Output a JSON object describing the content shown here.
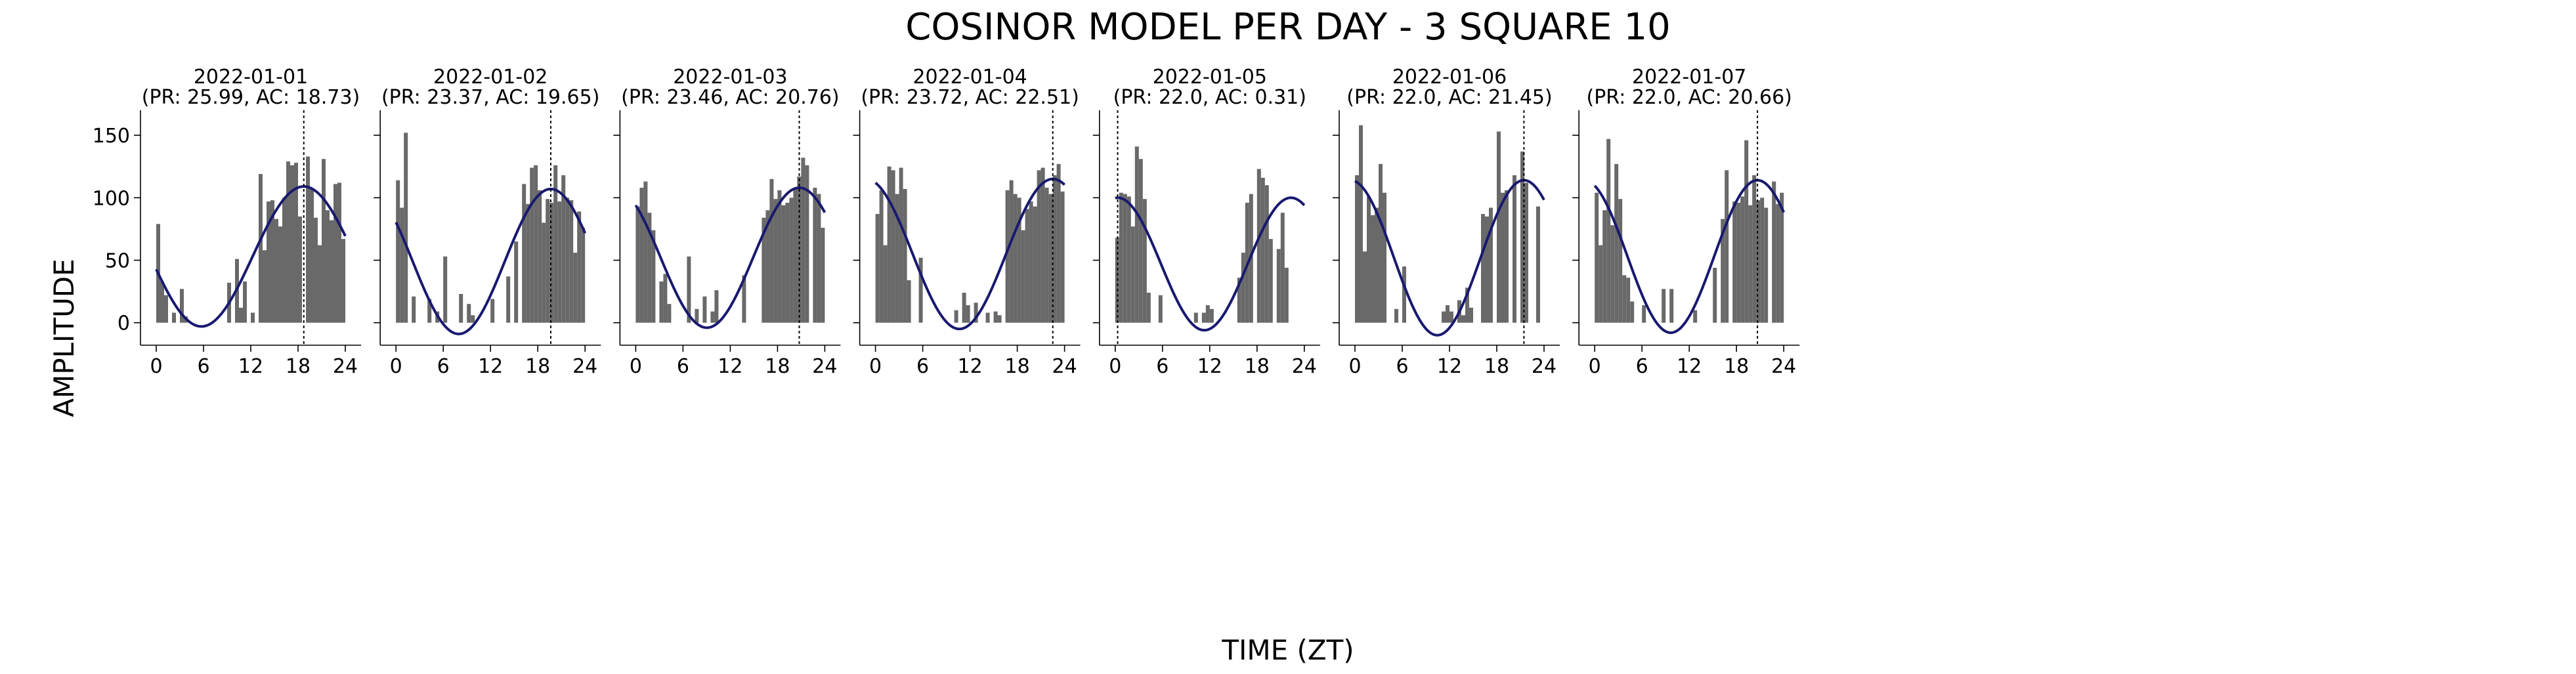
{
  "figure": {
    "title": "COSINOR MODEL PER DAY - 3 SQUARE 10",
    "xlabel": "TIME (ZT)",
    "ylabel": "AMPLITUDE"
  },
  "colors": {
    "bar": "#696969",
    "curve": "#191970",
    "acrophase_line": "#000000",
    "axis": "#000000"
  },
  "chart_data": [
    {
      "type": "bar",
      "title": "2022-01-01\n(PR: 25.99, AC: 18.73)",
      "date": "2022-01-01",
      "subtitle": "(PR: 25.99, AC: 18.73)",
      "xlim": [
        -2,
        26
      ],
      "ylim": [
        -18,
        170
      ],
      "xticks": [
        0,
        6,
        12,
        18,
        24
      ],
      "yticks": [
        0,
        50,
        100,
        150
      ],
      "x": [
        0,
        0.5,
        1,
        1.5,
        2,
        2.5,
        3,
        3.5,
        4,
        4.5,
        5,
        5.5,
        6,
        6.5,
        7,
        7.5,
        8,
        8.5,
        9,
        9.5,
        10,
        10.5,
        11,
        11.5,
        12,
        12.5,
        13,
        13.5,
        14,
        14.5,
        15,
        15.5,
        16,
        16.5,
        17,
        17.5,
        18,
        18.5,
        19,
        19.5,
        20,
        20.5,
        21,
        21.5,
        22,
        22.5,
        23,
        23.5
      ],
      "values": [
        79,
        33,
        22,
        0,
        8,
        0,
        27,
        5,
        0,
        0,
        0,
        0,
        0,
        0,
        0,
        0,
        0,
        0,
        32,
        0,
        51,
        12,
        33,
        0,
        8,
        0,
        119,
        58,
        97,
        98,
        83,
        77,
        100,
        129,
        126,
        128,
        85,
        0,
        133,
        107,
        84,
        62,
        131,
        90,
        82,
        111,
        112,
        67
      ],
      "cosinor": {
        "mesor": 53,
        "amplitude": 56,
        "acrophase": 18.73,
        "period": 25.99
      },
      "acrophase": 18.73
    },
    {
      "type": "bar",
      "title": "2022-01-02\n(PR: 23.37, AC: 19.65)",
      "date": "2022-01-02",
      "subtitle": "(PR: 23.37, AC: 19.65)",
      "xlim": [
        -2,
        26
      ],
      "ylim": [
        -18,
        170
      ],
      "xticks": [
        0,
        6,
        12,
        18,
        24
      ],
      "yticks": [
        0,
        50,
        100,
        150
      ],
      "x": [
        0,
        0.5,
        1,
        1.5,
        2,
        2.5,
        3,
        3.5,
        4,
        4.5,
        5,
        5.5,
        6,
        6.5,
        7,
        7.5,
        8,
        8.5,
        9,
        9.5,
        10,
        10.5,
        11,
        11.5,
        12,
        12.5,
        13,
        13.5,
        14,
        14.5,
        15,
        15.5,
        16,
        16.5,
        17,
        17.5,
        18,
        18.5,
        19,
        19.5,
        20,
        20.5,
        21,
        21.5,
        22,
        22.5,
        23,
        23.5
      ],
      "values": [
        114,
        92,
        152,
        0,
        21,
        0,
        0,
        0,
        19,
        0,
        9,
        0,
        53,
        0,
        0,
        0,
        23,
        0,
        15,
        6,
        0,
        0,
        0,
        0,
        19,
        0,
        0,
        0,
        37,
        0,
        65,
        0,
        111,
        95,
        124,
        126,
        106,
        80,
        99,
        96,
        126,
        97,
        118,
        100,
        98,
        56,
        89,
        76
      ],
      "cosinor": {
        "mesor": 49,
        "amplitude": 58,
        "acrophase": 19.65,
        "period": 23.37
      },
      "acrophase": 19.65
    },
    {
      "type": "bar",
      "title": "2022-01-03\n(PR: 23.46, AC: 20.76)",
      "date": "2022-01-03",
      "subtitle": "(PR: 23.46, AC: 20.76)",
      "xlim": [
        -2,
        26
      ],
      "ylim": [
        -18,
        170
      ],
      "xticks": [
        0,
        6,
        12,
        18,
        24
      ],
      "yticks": [
        0,
        50,
        100,
        150
      ],
      "x": [
        0,
        0.5,
        1,
        1.5,
        2,
        2.5,
        3,
        3.5,
        4,
        4.5,
        5,
        5.5,
        6,
        6.5,
        7,
        7.5,
        8,
        8.5,
        9,
        9.5,
        10,
        10.5,
        11,
        11.5,
        12,
        12.5,
        13,
        13.5,
        14,
        14.5,
        15,
        15.5,
        16,
        16.5,
        17,
        17.5,
        18,
        18.5,
        19,
        19.5,
        20,
        20.5,
        21,
        21.5,
        22,
        22.5,
        23,
        23.5
      ],
      "values": [
        93,
        108,
        113,
        88,
        74,
        0,
        33,
        39,
        15,
        0,
        0,
        0,
        0,
        53,
        0,
        11,
        0,
        21,
        0,
        9,
        26,
        0,
        0,
        0,
        0,
        0,
        0,
        38,
        0,
        0,
        0,
        0,
        84,
        90,
        115,
        99,
        106,
        94,
        96,
        100,
        107,
        117,
        132,
        126,
        0,
        108,
        103,
        76
      ],
      "cosinor": {
        "mesor": 52,
        "amplitude": 56,
        "acrophase": 20.76,
        "period": 23.46
      },
      "acrophase": 20.76
    },
    {
      "type": "bar",
      "title": "2022-01-04\n(PR: 23.72, AC: 22.51)",
      "date": "2022-01-04",
      "subtitle": "(PR: 23.72, AC: 22.51)",
      "xlim": [
        -2,
        26
      ],
      "ylim": [
        -18,
        170
      ],
      "xticks": [
        0,
        6,
        12,
        18,
        24
      ],
      "yticks": [
        0,
        50,
        100,
        150
      ],
      "x": [
        0,
        0.5,
        1,
        1.5,
        2,
        2.5,
        3,
        3.5,
        4,
        4.5,
        5,
        5.5,
        6,
        6.5,
        7,
        7.5,
        8,
        8.5,
        9,
        9.5,
        10,
        10.5,
        11,
        11.5,
        12,
        12.5,
        13,
        13.5,
        14,
        14.5,
        15,
        15.5,
        16,
        16.5,
        17,
        17.5,
        18,
        18.5,
        19,
        19.5,
        20,
        20.5,
        21,
        21.5,
        22,
        22.5,
        23,
        23.5
      ],
      "values": [
        87,
        106,
        62,
        125,
        122,
        103,
        124,
        107,
        34,
        0,
        0,
        52,
        0,
        0,
        0,
        0,
        0,
        0,
        0,
        0,
        10,
        0,
        24,
        14,
        0,
        16,
        0,
        0,
        8,
        0,
        9,
        6,
        0,
        106,
        114,
        103,
        100,
        74,
        91,
        97,
        93,
        122,
        124,
        108,
        103,
        118,
        127,
        105
      ],
      "cosinor": {
        "mesor": 55,
        "amplitude": 60,
        "acrophase": 22.51,
        "period": 23.72
      },
      "acrophase": 22.51
    },
    {
      "type": "bar",
      "title": "2022-01-05\n(PR: 22.0, AC: 0.31)",
      "date": "2022-01-05",
      "subtitle": "(PR: 22.0, AC: 0.31)",
      "xlim": [
        -2,
        26
      ],
      "ylim": [
        -18,
        170
      ],
      "xticks": [
        0,
        6,
        12,
        18,
        24
      ],
      "yticks": [
        0,
        50,
        100,
        150
      ],
      "x": [
        0,
        0.5,
        1,
        1.5,
        2,
        2.5,
        3,
        3.5,
        4,
        4.5,
        5,
        5.5,
        6,
        6.5,
        7,
        7.5,
        8,
        8.5,
        9,
        9.5,
        10,
        10.5,
        11,
        11.5,
        12,
        12.5,
        13,
        13.5,
        14,
        14.5,
        15,
        15.5,
        16,
        16.5,
        17,
        17.5,
        18,
        18.5,
        19,
        19.5,
        20,
        20.5,
        21,
        21.5,
        22,
        22.5,
        23,
        23.5
      ],
      "values": [
        68,
        104,
        103,
        101,
        77,
        141,
        131,
        99,
        24,
        0,
        0,
        22,
        0,
        0,
        0,
        0,
        0,
        0,
        0,
        0,
        8,
        0,
        8,
        14,
        11,
        0,
        0,
        0,
        0,
        0,
        0,
        36,
        56,
        96,
        103,
        0,
        123,
        116,
        110,
        67,
        0,
        59,
        88,
        44,
        0,
        0,
        0,
        0
      ],
      "cosinor": {
        "mesor": 47,
        "amplitude": 53,
        "acrophase": 0.31,
        "period": 22.0
      },
      "acrophase": 0.31
    },
    {
      "type": "bar",
      "title": "2022-01-06\n(PR: 22.0, AC: 21.45)",
      "date": "2022-01-06",
      "subtitle": "(PR: 22.0, AC: 21.45)",
      "xlim": [
        -2,
        26
      ],
      "ylim": [
        -18,
        170
      ],
      "xticks": [
        0,
        6,
        12,
        18,
        24
      ],
      "yticks": [
        0,
        50,
        100,
        150
      ],
      "x": [
        0,
        0.5,
        1,
        1.5,
        2,
        2.5,
        3,
        3.5,
        4,
        4.5,
        5,
        5.5,
        6,
        6.5,
        7,
        7.5,
        8,
        8.5,
        9,
        9.5,
        10,
        10.5,
        11,
        11.5,
        12,
        12.5,
        13,
        13.5,
        14,
        14.5,
        15,
        15.5,
        16,
        16.5,
        17,
        17.5,
        18,
        18.5,
        19,
        19.5,
        20,
        20.5,
        21,
        21.5,
        22,
        22.5,
        23,
        23.5
      ],
      "values": [
        118,
        158,
        57,
        101,
        86,
        92,
        127,
        104,
        0,
        0,
        11,
        0,
        45,
        0,
        0,
        0,
        0,
        0,
        0,
        0,
        0,
        0,
        9,
        14,
        9,
        0,
        18,
        6,
        28,
        12,
        0,
        0,
        87,
        85,
        92,
        0,
        153,
        104,
        106,
        0,
        118,
        0,
        137,
        112,
        0,
        0,
        93,
        0
      ],
      "cosinor": {
        "mesor": 52,
        "amplitude": 62,
        "acrophase": 21.45,
        "period": 22.0
      },
      "acrophase": 21.45
    },
    {
      "type": "bar",
      "title": "2022-01-07\n(PR: 22.0, AC: 20.66)",
      "date": "2022-01-07",
      "subtitle": "(PR: 22.0, AC: 20.66)",
      "xlim": [
        -2,
        26
      ],
      "ylim": [
        -18,
        170
      ],
      "xticks": [
        0,
        6,
        12,
        18,
        24
      ],
      "yticks": [
        0,
        50,
        100,
        150
      ],
      "x": [
        0,
        0.5,
        1,
        1.5,
        2,
        2.5,
        3,
        3.5,
        4,
        4.5,
        5,
        5.5,
        6,
        6.5,
        7,
        7.5,
        8,
        8.5,
        9,
        9.5,
        10,
        10.5,
        11,
        11.5,
        12,
        12.5,
        13,
        13.5,
        14,
        14.5,
        15,
        15.5,
        16,
        16.5,
        17,
        17.5,
        18,
        18.5,
        19,
        19.5,
        20,
        20.5,
        21,
        21.5,
        22,
        22.5,
        23,
        23.5
      ],
      "values": [
        104,
        62,
        90,
        147,
        78,
        127,
        99,
        38,
        36,
        17,
        0,
        0,
        14,
        0,
        0,
        0,
        0,
        27,
        0,
        27,
        0,
        0,
        0,
        0,
        0,
        10,
        0,
        0,
        0,
        0,
        44,
        0,
        83,
        122,
        0,
        97,
        96,
        101,
        146,
        94,
        118,
        98,
        100,
        92,
        0,
        113,
        95,
        104
      ],
      "cosinor": {
        "mesor": 53,
        "amplitude": 61,
        "acrophase": 20.66,
        "period": 22.0
      },
      "acrophase": 20.66
    }
  ]
}
